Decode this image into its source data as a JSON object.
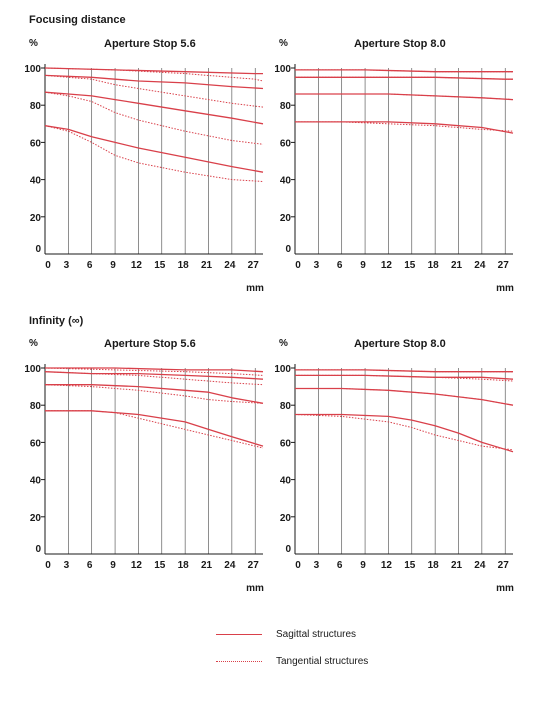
{
  "sections": {
    "focus_title": "Focusing distance",
    "infinity_title": "Infinity (∞)"
  },
  "legend": {
    "sagittal": "Sagittal structures",
    "tangential": "Tangential structures"
  },
  "colors": {
    "curve": "#d9404a",
    "axis": "#1a1a1a"
  },
  "chart_data": [
    {
      "type": "line",
      "title": "Aperture Stop 5.6",
      "group": "Focusing distance",
      "ylabel": "%",
      "xlabel": "mm",
      "ylim": [
        0,
        100
      ],
      "xlim": [
        0,
        28
      ],
      "yticks": [
        0,
        20,
        40,
        60,
        80,
        100
      ],
      "xticks": [
        0,
        3,
        6,
        9,
        12,
        15,
        18,
        21,
        24,
        27
      ],
      "series": [
        {
          "style": "sagittal",
          "x": [
            0,
            9,
            18,
            27,
            28
          ],
          "y": [
            100,
            99,
            98,
            97,
            97
          ]
        },
        {
          "style": "tangential",
          "x": [
            0,
            9,
            18,
            27,
            28
          ],
          "y": [
            100,
            99,
            97,
            94,
            93
          ]
        },
        {
          "style": "sagittal",
          "x": [
            0,
            6,
            9,
            12,
            18,
            24,
            28
          ],
          "y": [
            96,
            95,
            94,
            93,
            92,
            90,
            89
          ]
        },
        {
          "style": "tangential",
          "x": [
            0,
            6,
            9,
            12,
            18,
            24,
            28
          ],
          "y": [
            96,
            94,
            91,
            89,
            85,
            81,
            79
          ]
        },
        {
          "style": "sagittal",
          "x": [
            0,
            3,
            6,
            9,
            12,
            18,
            24,
            28
          ],
          "y": [
            87,
            86,
            85,
            83,
            81,
            77,
            73,
            70
          ]
        },
        {
          "style": "tangential",
          "x": [
            0,
            3,
            6,
            9,
            12,
            18,
            24,
            28
          ],
          "y": [
            87,
            85,
            82,
            76,
            72,
            66,
            61,
            59
          ]
        },
        {
          "style": "sagittal",
          "x": [
            0,
            3,
            6,
            9,
            12,
            18,
            24,
            28
          ],
          "y": [
            69,
            67,
            63,
            60,
            57,
            52,
            47,
            44
          ]
        },
        {
          "style": "tangential",
          "x": [
            0,
            3,
            6,
            9,
            12,
            18,
            24,
            28
          ],
          "y": [
            69,
            66,
            60,
            53,
            49,
            44,
            40,
            39
          ]
        }
      ]
    },
    {
      "type": "line",
      "title": "Aperture Stop 8.0",
      "group": "Focusing distance",
      "ylabel": "%",
      "xlabel": "mm",
      "ylim": [
        0,
        100
      ],
      "xlim": [
        0,
        28
      ],
      "yticks": [
        0,
        20,
        40,
        60,
        80,
        100
      ],
      "xticks": [
        0,
        3,
        6,
        9,
        12,
        15,
        18,
        21,
        24,
        27
      ],
      "series": [
        {
          "style": "sagittal",
          "x": [
            0,
            9,
            18,
            27,
            28
          ],
          "y": [
            99,
            99,
            98,
            98,
            98
          ]
        },
        {
          "style": "tangential",
          "x": [
            0,
            9,
            18,
            27,
            28
          ],
          "y": [
            99,
            99,
            98,
            98,
            98
          ]
        },
        {
          "style": "sagittal",
          "x": [
            0,
            9,
            18,
            27,
            28
          ],
          "y": [
            95,
            95,
            95,
            94,
            94
          ]
        },
        {
          "style": "tangential",
          "x": [
            0,
            9,
            18,
            27,
            28
          ],
          "y": [
            95,
            95,
            95,
            94,
            94
          ]
        },
        {
          "style": "sagittal",
          "x": [
            0,
            6,
            12,
            18,
            24,
            28
          ],
          "y": [
            86,
            86,
            86,
            85,
            84,
            83
          ]
        },
        {
          "style": "tangential",
          "x": [
            0,
            6,
            12,
            18,
            24,
            28
          ],
          "y": [
            86,
            86,
            86,
            85,
            84,
            83
          ]
        },
        {
          "style": "sagittal",
          "x": [
            0,
            6,
            12,
            18,
            24,
            28
          ],
          "y": [
            71,
            71,
            71,
            70,
            68,
            65
          ]
        },
        {
          "style": "tangential",
          "x": [
            0,
            6,
            12,
            18,
            24,
            28
          ],
          "y": [
            71,
            71,
            70,
            69,
            67,
            66
          ]
        }
      ]
    },
    {
      "type": "line",
      "title": "Aperture Stop 5.6",
      "group": "Infinity (∞)",
      "ylabel": "%",
      "xlabel": "mm",
      "ylim": [
        0,
        100
      ],
      "xlim": [
        0,
        28
      ],
      "yticks": [
        0,
        20,
        40,
        60,
        80,
        100
      ],
      "xticks": [
        0,
        3,
        6,
        9,
        12,
        15,
        18,
        21,
        24,
        27
      ],
      "series": [
        {
          "style": "sagittal",
          "x": [
            0,
            9,
            18,
            24,
            28
          ],
          "y": [
            100,
            100,
            99,
            99,
            98
          ]
        },
        {
          "style": "tangential",
          "x": [
            0,
            9,
            18,
            24,
            28
          ],
          "y": [
            100,
            99,
            98,
            97,
            96
          ]
        },
        {
          "style": "sagittal",
          "x": [
            0,
            6,
            12,
            18,
            24,
            28
          ],
          "y": [
            98,
            97,
            97,
            96,
            95,
            94
          ]
        },
        {
          "style": "tangential",
          "x": [
            0,
            6,
            12,
            18,
            24,
            28
          ],
          "y": [
            98,
            97,
            96,
            94,
            92,
            91
          ]
        },
        {
          "style": "sagittal",
          "x": [
            0,
            6,
            12,
            18,
            21,
            24,
            28
          ],
          "y": [
            91,
            91,
            90,
            88,
            87,
            84,
            81
          ]
        },
        {
          "style": "tangential",
          "x": [
            0,
            6,
            12,
            18,
            21,
            24,
            28
          ],
          "y": [
            91,
            90,
            88,
            85,
            83,
            82,
            81
          ]
        },
        {
          "style": "sagittal",
          "x": [
            0,
            6,
            9,
            12,
            18,
            21,
            24,
            28
          ],
          "y": [
            77,
            77,
            76,
            75,
            71,
            67,
            63,
            58
          ]
        },
        {
          "style": "tangential",
          "x": [
            0,
            6,
            9,
            12,
            18,
            21,
            24,
            28
          ],
          "y": [
            77,
            77,
            76,
            73,
            67,
            64,
            61,
            57
          ]
        }
      ]
    },
    {
      "type": "line",
      "title": "Aperture Stop 8.0",
      "group": "Infinity (∞)",
      "ylabel": "%",
      "xlabel": "mm",
      "ylim": [
        0,
        100
      ],
      "xlim": [
        0,
        28
      ],
      "yticks": [
        0,
        20,
        40,
        60,
        80,
        100
      ],
      "xticks": [
        0,
        3,
        6,
        9,
        12,
        15,
        18,
        21,
        24,
        27
      ],
      "series": [
        {
          "style": "sagittal",
          "x": [
            0,
            9,
            18,
            27,
            28
          ],
          "y": [
            99,
            99,
            98,
            98,
            98
          ]
        },
        {
          "style": "tangential",
          "x": [
            0,
            9,
            18,
            27,
            28
          ],
          "y": [
            99,
            99,
            98,
            98,
            98
          ]
        },
        {
          "style": "sagittal",
          "x": [
            0,
            9,
            18,
            24,
            28
          ],
          "y": [
            96,
            96,
            95,
            95,
            94
          ]
        },
        {
          "style": "tangential",
          "x": [
            0,
            9,
            18,
            24,
            28
          ],
          "y": [
            96,
            96,
            95,
            94,
            93
          ]
        },
        {
          "style": "sagittal",
          "x": [
            0,
            6,
            12,
            18,
            24,
            28
          ],
          "y": [
            89,
            89,
            88,
            86,
            83,
            80
          ]
        },
        {
          "style": "tangential",
          "x": [
            0,
            6,
            12,
            18,
            24,
            28
          ],
          "y": [
            89,
            89,
            88,
            86,
            83,
            80
          ]
        },
        {
          "style": "sagittal",
          "x": [
            0,
            6,
            12,
            15,
            18,
            21,
            24,
            28
          ],
          "y": [
            75,
            75,
            74,
            72,
            69,
            65,
            60,
            55
          ]
        },
        {
          "style": "tangential",
          "x": [
            0,
            6,
            12,
            15,
            18,
            21,
            24,
            28
          ],
          "y": [
            75,
            74,
            71,
            68,
            64,
            61,
            58,
            56
          ]
        }
      ]
    }
  ]
}
